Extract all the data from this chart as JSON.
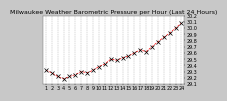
{
  "title": "Milwaukee Weather Barometric Pressure per Hour (Last 24 Hours)",
  "hours": [
    0,
    1,
    2,
    3,
    4,
    5,
    6,
    7,
    8,
    9,
    10,
    11,
    12,
    13,
    14,
    15,
    16,
    17,
    18,
    19,
    20,
    21,
    22,
    23
  ],
  "x_labels": [
    "1",
    "2",
    "3",
    "4",
    "5",
    "6",
    "7",
    "8",
    "9",
    "10",
    "11",
    "12",
    "13",
    "14",
    "15",
    "16",
    "17",
    "18",
    "19",
    "20",
    "21",
    "22",
    "23",
    "24"
  ],
  "pressure": [
    29.32,
    29.28,
    29.22,
    29.18,
    29.22,
    29.25,
    29.3,
    29.28,
    29.32,
    29.38,
    29.42,
    29.5,
    29.48,
    29.52,
    29.55,
    29.6,
    29.65,
    29.62,
    29.7,
    29.78,
    29.85,
    29.92,
    30.0,
    30.08
  ],
  "line_color": "#ff0000",
  "marker_color": "#000000",
  "bg_color": "#c8c8c8",
  "plot_bg": "#ffffff",
  "ylim_min": 29.1,
  "ylim_max": 30.2,
  "ytick_values": [
    29.1,
    29.2,
    29.3,
    29.4,
    29.5,
    29.6,
    29.7,
    29.8,
    29.9,
    30.0,
    30.1,
    30.2
  ],
  "title_fontsize": 4.5,
  "tick_fontsize": 3.5,
  "line_width": 0.5,
  "marker_size": 2.5
}
